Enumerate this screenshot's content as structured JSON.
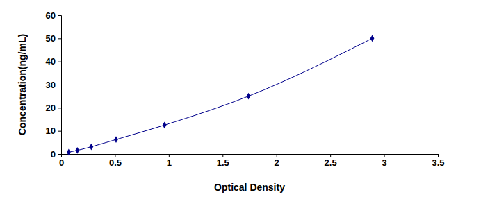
{
  "chart_data": {
    "type": "line",
    "x_label": "Optical Density",
    "y_label": "Concentration(ng/mL)",
    "x": [
      0.07,
      0.15,
      0.28,
      0.51,
      0.96,
      1.74,
      2.89
    ],
    "values": [
      0.78,
      1.56,
      3.125,
      6.25,
      12.5,
      25,
      50
    ],
    "color": "#00008b",
    "marker": "diamond",
    "xlim": [
      0,
      3.5
    ],
    "xticks": [
      0,
      0.5,
      1,
      1.5,
      2,
      2.5,
      3,
      3.5
    ],
    "ylim": [
      0,
      60
    ],
    "yticks": [
      0,
      10,
      20,
      30,
      40,
      50,
      60
    ],
    "grid": false
  }
}
